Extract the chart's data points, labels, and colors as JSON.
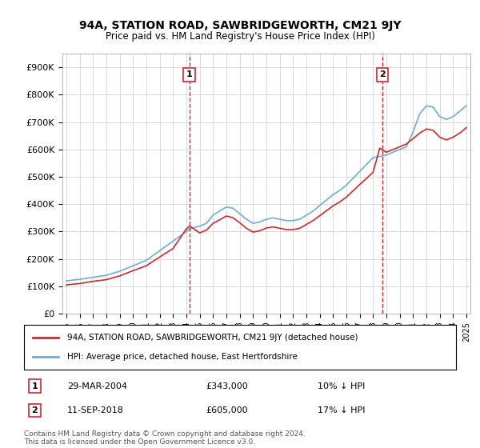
{
  "title": "94A, STATION ROAD, SAWBRIDGEWORTH, CM21 9JY",
  "subtitle": "Price paid vs. HM Land Registry's House Price Index (HPI)",
  "hpi_label": "HPI: Average price, detached house, East Hertfordshire",
  "price_label": "94A, STATION ROAD, SAWBRIDGEWORTH, CM21 9JY (detached house)",
  "transaction1_date": "29-MAR-2004",
  "transaction1_price": 343000,
  "transaction1_note": "10% ↓ HPI",
  "transaction2_date": "11-SEP-2018",
  "transaction2_price": 605000,
  "transaction2_note": "17% ↓ HPI",
  "footer": "Contains HM Land Registry data © Crown copyright and database right 2024.\nThis data is licensed under the Open Government Licence v3.0.",
  "hpi_color": "#6baed6",
  "price_color": "#d62728",
  "transaction_marker_color": "#d62728",
  "background_color": "#ffffff",
  "grid_color": "#cccccc",
  "ylim": [
    0,
    950000
  ],
  "yticks": [
    0,
    100000,
    200000,
    300000,
    400000,
    500000,
    600000,
    700000,
    800000,
    900000
  ],
  "ytick_labels": [
    "£0",
    "£100K",
    "£200K",
    "£300K",
    "£400K",
    "£500K",
    "£600K",
    "£700K",
    "£800K",
    "£900K"
  ],
  "year_start": 1995,
  "year_end": 2025,
  "hpi_years": [
    1995,
    1996,
    1997,
    1998,
    1999,
    2000,
    2001,
    2002,
    2003,
    2004,
    2004.25,
    2005,
    2005.5,
    2006,
    2006.5,
    2007,
    2007.5,
    2008,
    2008.5,
    2009,
    2009.5,
    2010,
    2010.5,
    2011,
    2011.5,
    2012,
    2012.5,
    2013,
    2013.5,
    2014,
    2014.5,
    2015,
    2015.5,
    2016,
    2016.5,
    2017,
    2017.5,
    2018,
    2018.5,
    2019,
    2019.5,
    2020,
    2020.5,
    2021,
    2021.5,
    2022,
    2022.5,
    2023,
    2023.5,
    2024,
    2024.5,
    2025
  ],
  "hpi_values": [
    120000,
    125000,
    133000,
    140000,
    155000,
    175000,
    195000,
    230000,
    265000,
    300000,
    310000,
    320000,
    330000,
    360000,
    375000,
    390000,
    385000,
    365000,
    345000,
    330000,
    335000,
    345000,
    350000,
    345000,
    340000,
    340000,
    345000,
    360000,
    375000,
    395000,
    415000,
    435000,
    450000,
    470000,
    495000,
    520000,
    545000,
    570000,
    575000,
    580000,
    590000,
    600000,
    610000,
    665000,
    730000,
    760000,
    755000,
    720000,
    710000,
    720000,
    740000,
    760000
  ],
  "price_years": [
    1995,
    1996,
    1997,
    1998,
    1999,
    2000,
    2001,
    2002,
    2003,
    2004,
    2004.25,
    2005,
    2005.5,
    2006,
    2006.5,
    2007,
    2007.5,
    2008,
    2008.5,
    2009,
    2009.5,
    2010,
    2010.5,
    2011,
    2011.5,
    2012,
    2012.5,
    2013,
    2013.5,
    2014,
    2014.5,
    2015,
    2015.5,
    2016,
    2016.5,
    2017,
    2017.5,
    2018,
    2018.5,
    2019,
    2019.5,
    2020,
    2020.5,
    2021,
    2021.5,
    2022,
    2022.5,
    2023,
    2023.5,
    2024,
    2024.5,
    2025
  ],
  "price_values": [
    105000,
    110000,
    118000,
    124000,
    138000,
    157000,
    175000,
    207000,
    238000,
    310000,
    320000,
    295000,
    305000,
    330000,
    343000,
    357000,
    350000,
    332000,
    312000,
    298000,
    303000,
    313000,
    317000,
    312000,
    307000,
    307000,
    312000,
    326000,
    340000,
    358000,
    376000,
    394000,
    408000,
    426000,
    449000,
    472000,
    494000,
    517000,
    605000,
    590000,
    600000,
    610000,
    620000,
    640000,
    660000,
    675000,
    670000,
    645000,
    635000,
    645000,
    660000,
    680000
  ],
  "transaction1_x": 2004.22,
  "transaction2_x": 2018.69
}
